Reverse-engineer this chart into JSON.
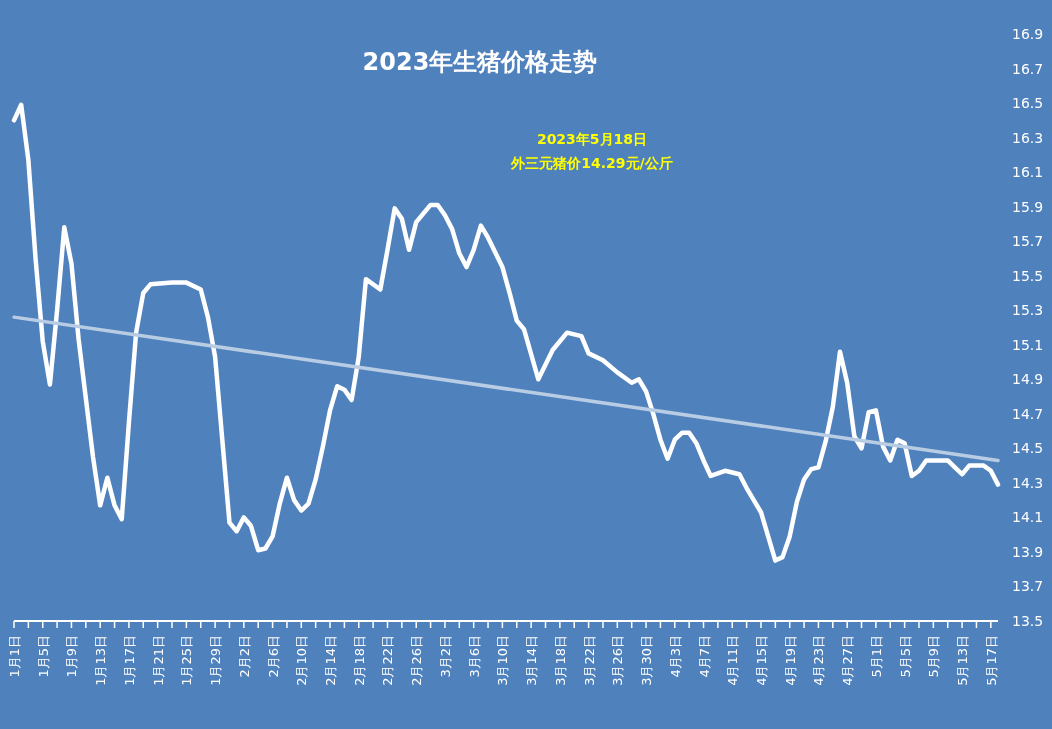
{
  "chart_data": {
    "type": "line",
    "title": "2023年生猪价格走势",
    "annotations": [
      "2023年5月18日",
      "外三元猪价14.29元/公斤"
    ],
    "xlim": [
      "--01-01",
      "--05-18"
    ],
    "ylim": [
      13.5,
      16.9
    ],
    "yticks": [
      13.5,
      13.7,
      13.9,
      14.1,
      14.3,
      14.5,
      14.7,
      14.9,
      15.1,
      15.3,
      15.5,
      15.7,
      15.9,
      16.1,
      16.3,
      16.5,
      16.7,
      16.9
    ],
    "xticks": [
      {
        "value": "--01-01",
        "label": "1月1日"
      },
      {
        "value": "--01-03",
        "label": null
      },
      {
        "value": "--01-05",
        "label": "1月5日"
      },
      {
        "value": "--01-07",
        "label": null
      },
      {
        "value": "--01-09",
        "label": "1月9日"
      },
      {
        "value": "--01-11",
        "label": null
      },
      {
        "value": "--01-13",
        "label": "1月13日"
      },
      {
        "value": "--01-15",
        "label": null
      },
      {
        "value": "--01-17",
        "label": "1月17日"
      },
      {
        "value": "--01-19",
        "label": null
      },
      {
        "value": "--01-21",
        "label": "1月21日"
      },
      {
        "value": "--01-23",
        "label": null
      },
      {
        "value": "--01-25",
        "label": "1月25日"
      },
      {
        "value": "--01-27",
        "label": null
      },
      {
        "value": "--01-29",
        "label": "1月29日"
      },
      {
        "value": "--01-31",
        "label": null
      },
      {
        "value": "--02-02",
        "label": "2月2日"
      },
      {
        "value": "--02-04",
        "label": null
      },
      {
        "value": "--02-06",
        "label": "2月6日"
      },
      {
        "value": "--02-08",
        "label": null
      },
      {
        "value": "--02-10",
        "label": "2月10日"
      },
      {
        "value": "--02-12",
        "label": null
      },
      {
        "value": "--02-14",
        "label": "2月14日"
      },
      {
        "value": "--02-16",
        "label": null
      },
      {
        "value": "--02-18",
        "label": "2月18日"
      },
      {
        "value": "--02-20",
        "label": null
      },
      {
        "value": "--02-22",
        "label": "2月22日"
      },
      {
        "value": "--02-24",
        "label": null
      },
      {
        "value": "--02-26",
        "label": "2月26日"
      },
      {
        "value": "--02-28",
        "label": null
      },
      {
        "value": "--03-02",
        "label": "3月2日"
      },
      {
        "value": "--03-04",
        "label": null
      },
      {
        "value": "--03-06",
        "label": "3月6日"
      },
      {
        "value": "--03-08",
        "label": null
      },
      {
        "value": "--03-10",
        "label": "3月10日"
      },
      {
        "value": "--03-12",
        "label": null
      },
      {
        "value": "--03-14",
        "label": "3月14日"
      },
      {
        "value": "--03-16",
        "label": null
      },
      {
        "value": "--03-18",
        "label": "3月18日"
      },
      {
        "value": "--03-20",
        "label": null
      },
      {
        "value": "--03-22",
        "label": "3月22日"
      },
      {
        "value": "--03-24",
        "label": null
      },
      {
        "value": "--03-26",
        "label": "3月26日"
      },
      {
        "value": "--03-28",
        "label": null
      },
      {
        "value": "--03-30",
        "label": "3月30日"
      },
      {
        "value": "--04-01",
        "label": null
      },
      {
        "value": "--04-03",
        "label": "4月3日"
      },
      {
        "value": "--04-05",
        "label": null
      },
      {
        "value": "--04-07",
        "label": "4月7日"
      },
      {
        "value": "--04-09",
        "label": null
      },
      {
        "value": "--04-11",
        "label": "4月11日"
      },
      {
        "value": "--04-13",
        "label": null
      },
      {
        "value": "--04-15",
        "label": "4月15日"
      },
      {
        "value": "--04-17",
        "label": null
      },
      {
        "value": "--04-19",
        "label": "4月19日"
      },
      {
        "value": "--04-21",
        "label": null
      },
      {
        "value": "--04-23",
        "label": "4月23日"
      },
      {
        "value": "--04-25",
        "label": null
      },
      {
        "value": "--04-27",
        "label": "4月27日"
      },
      {
        "value": "--04-29",
        "label": null
      },
      {
        "value": "--05-01",
        "label": "5月1日"
      },
      {
        "value": "--05-03",
        "label": null
      },
      {
        "value": "--05-05",
        "label": "5月5日"
      },
      {
        "value": "--05-07",
        "label": null
      },
      {
        "value": "--05-09",
        "label": "5月9日"
      },
      {
        "value": "--05-11",
        "label": null
      },
      {
        "value": "--05-13",
        "label": "5月13日"
      },
      {
        "value": "--05-15",
        "label": null
      },
      {
        "value": "--05-17",
        "label": "5月17日"
      }
    ],
    "series": [
      {
        "color": "#ffffff",
        "x": [
          "--01-01",
          "--01-02",
          "--01-03",
          "--01-04",
          "--01-05",
          "--01-06",
          "--01-07",
          "--01-08",
          "--01-09",
          "--01-10",
          "--01-12",
          "--01-13",
          "--01-14",
          "--01-15",
          "--01-16",
          "--01-17",
          "--01-18",
          "--01-19",
          "--01-20",
          "--01-23",
          "--01-25",
          "--01-27",
          "--01-28",
          "--01-29",
          "--01-30",
          "--01-31",
          "--02-01",
          "--02-02",
          "--02-03",
          "--02-04",
          "--02-05",
          "--02-06",
          "--02-07",
          "--02-08",
          "--02-09",
          "--02-10",
          "--02-11",
          "--02-12",
          "--02-13",
          "--02-14",
          "--02-15",
          "--02-16",
          "--02-17",
          "--02-18",
          "--02-19",
          "--02-21",
          "--02-22",
          "--02-23",
          "--02-24",
          "--02-25",
          "--02-26",
          "--02-28",
          "--03-01",
          "--03-02",
          "--03-03",
          "--03-04",
          "--03-05",
          "--03-06",
          "--03-07",
          "--03-08",
          "--03-10",
          "--03-11",
          "--03-12",
          "--03-13",
          "--03-15",
          "--03-17",
          "--03-19",
          "--03-21",
          "--03-22",
          "--03-24",
          "--03-26",
          "--03-28",
          "--03-29",
          "--03-30",
          "--03-31",
          "--04-01",
          "--04-02",
          "--04-03",
          "--04-04",
          "--04-05",
          "--04-06",
          "--04-07",
          "--04-08",
          "--04-10",
          "--04-12",
          "--04-13",
          "--04-15",
          "--04-16",
          "--04-17",
          "--04-18",
          "--04-19",
          "--04-20",
          "--04-21",
          "--04-22",
          "--04-23",
          "--04-24",
          "--04-25",
          "--04-26",
          "--04-27",
          "--04-28",
          "--04-29",
          "--04-30",
          "--05-01",
          "--05-02",
          "--05-03",
          "--05-04",
          "--05-05",
          "--05-06",
          "--05-07",
          "--05-08",
          "--05-09",
          "--05-11",
          "--05-12",
          "--05-13",
          "--05-14",
          "--05-16",
          "--05-17",
          "--05-18"
        ],
        "values": [
          16.4,
          16.49,
          16.17,
          15.6,
          15.12,
          14.87,
          15.3,
          15.78,
          15.57,
          15.13,
          14.45,
          14.17,
          14.33,
          14.17,
          14.09,
          14.65,
          15.17,
          15.4,
          15.45,
          15.46,
          15.46,
          15.42,
          15.26,
          15.03,
          14.55,
          14.07,
          14.02,
          14.1,
          14.05,
          13.91,
          13.92,
          13.99,
          14.18,
          14.33,
          14.2,
          14.14,
          14.18,
          14.32,
          14.51,
          14.72,
          14.86,
          14.84,
          14.78,
          15.03,
          15.48,
          15.42,
          15.65,
          15.89,
          15.83,
          15.65,
          15.81,
          15.91,
          15.91,
          15.85,
          15.77,
          15.63,
          15.55,
          15.65,
          15.79,
          15.72,
          15.55,
          15.4,
          15.24,
          15.19,
          14.9,
          15.07,
          15.17,
          15.15,
          15.05,
          15.01,
          14.94,
          14.88,
          14.9,
          14.83,
          14.7,
          14.55,
          14.44,
          14.55,
          14.59,
          14.59,
          14.53,
          14.43,
          14.34,
          14.37,
          14.35,
          14.27,
          14.13,
          13.99,
          13.85,
          13.87,
          13.99,
          14.19,
          14.32,
          14.38,
          14.39,
          14.54,
          14.74,
          15.06,
          14.88,
          14.57,
          14.5,
          14.71,
          14.72,
          14.51,
          14.43,
          14.55,
          14.53,
          14.34,
          14.37,
          14.43,
          14.43,
          14.43,
          14.39,
          14.35,
          14.4,
          14.4,
          14.37,
          14.29
        ]
      },
      {
        "color": "#b8cce4",
        "x": [
          "--01-01",
          "--05-18"
        ],
        "values": [
          15.26,
          14.43
        ]
      }
    ]
  }
}
